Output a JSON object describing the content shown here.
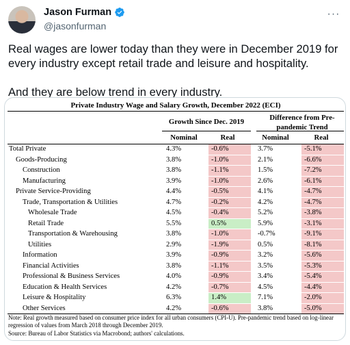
{
  "author": {
    "display_name": "Jason Furman",
    "handle": "@jasonfurman",
    "verified_icon": "verified-badge-icon",
    "avatar_icon": "avatar"
  },
  "more_icon": "more-options-icon",
  "tweet": {
    "paragraphs": [
      "Real wages are lower today than they were in December 2019 for every industry except retail trade and leisure and hospitality.",
      "And they are below trend in every industry."
    ]
  },
  "colors": {
    "negative_cell": "#f4c8c8",
    "positive_cell": "#c9eec6",
    "verified_blue": "#1d9bf0"
  },
  "chart_data": {
    "type": "table",
    "title": "Private Industry Wage and Salary Growth, December 2022 (ECI)",
    "group_headers": [
      "Growth Since Dec. 2019",
      "Difference from Pre-pandemic Trend"
    ],
    "columns": [
      "Nominal",
      "Real",
      "Nominal",
      "Real"
    ],
    "rows": [
      {
        "label": "Total Private",
        "indent": 0,
        "values": [
          "4.3%",
          "-0.6%",
          "3.7%",
          "-5.1%"
        ]
      },
      {
        "label": "Goods-Producing",
        "indent": 1,
        "values": [
          "3.8%",
          "-1.0%",
          "2.1%",
          "-6.6%"
        ]
      },
      {
        "label": "Construction",
        "indent": 2,
        "values": [
          "3.8%",
          "-1.1%",
          "1.5%",
          "-7.2%"
        ]
      },
      {
        "label": "Manufacturing",
        "indent": 2,
        "values": [
          "3.9%",
          "-1.0%",
          "2.6%",
          "-6.1%"
        ]
      },
      {
        "label": "Private Service-Providing",
        "indent": 1,
        "values": [
          "4.4%",
          "-0.5%",
          "4.1%",
          "-4.7%"
        ]
      },
      {
        "label": "Trade, Transportation & Utilities",
        "indent": 2,
        "values": [
          "4.7%",
          "-0.2%",
          "4.2%",
          "-4.7%"
        ]
      },
      {
        "label": "Wholesale Trade",
        "indent": 3,
        "values": [
          "4.5%",
          "-0.4%",
          "5.2%",
          "-3.8%"
        ]
      },
      {
        "label": "Retail Trade",
        "indent": 3,
        "values": [
          "5.5%",
          "0.5%",
          "5.9%",
          "-3.1%"
        ]
      },
      {
        "label": "Transportation & Warehousing",
        "indent": 3,
        "values": [
          "3.8%",
          "-1.0%",
          "-0.7%",
          "-9.1%"
        ]
      },
      {
        "label": "Utilities",
        "indent": 3,
        "values": [
          "2.9%",
          "-1.9%",
          "0.5%",
          "-8.1%"
        ]
      },
      {
        "label": "Information",
        "indent": 2,
        "values": [
          "3.9%",
          "-0.9%",
          "3.2%",
          "-5.6%"
        ]
      },
      {
        "label": "Financial Activities",
        "indent": 2,
        "values": [
          "3.8%",
          "-1.1%",
          "3.5%",
          "-5.3%"
        ]
      },
      {
        "label": "Professional & Business Services",
        "indent": 2,
        "values": [
          "4.0%",
          "-0.9%",
          "3.4%",
          "-5.4%"
        ]
      },
      {
        "label": "Education & Health Services",
        "indent": 2,
        "values": [
          "4.2%",
          "-0.7%",
          "4.5%",
          "-4.4%"
        ]
      },
      {
        "label": "Leisure & Hospitality",
        "indent": 2,
        "values": [
          "6.3%",
          "1.4%",
          "7.1%",
          "-2.0%"
        ]
      },
      {
        "label": "Other Services",
        "indent": 2,
        "values": [
          "4.2%",
          "-0.6%",
          "3.8%",
          "-5.0%"
        ]
      }
    ],
    "note": "Note: Real growth measured based on consumer price index for all urban consumers (CPI-U). Pre-pandemic trend based on log-linear regression of values from March 2018 through December 2019.",
    "source": "Source: Bureau of Labor Statistics via Macrobond; authors' calculations."
  }
}
